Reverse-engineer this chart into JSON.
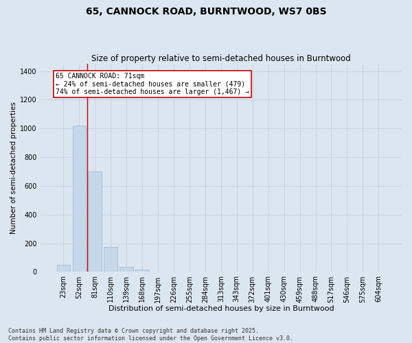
{
  "title": "65, CANNOCK ROAD, BURNTWOOD, WS7 0BS",
  "subtitle": "Size of property relative to semi-detached houses in Burntwood",
  "xlabel": "Distribution of semi-detached houses by size in Burntwood",
  "ylabel": "Number of semi-detached properties",
  "categories": [
    "23sqm",
    "52sqm",
    "81sqm",
    "110sqm",
    "139sqm",
    "168sqm",
    "197sqm",
    "226sqm",
    "255sqm",
    "284sqm",
    "313sqm",
    "343sqm",
    "372sqm",
    "401sqm",
    "430sqm",
    "459sqm",
    "488sqm",
    "517sqm",
    "546sqm",
    "575sqm",
    "604sqm"
  ],
  "values": [
    48,
    1020,
    700,
    175,
    38,
    15,
    4,
    0,
    0,
    0,
    0,
    0,
    0,
    0,
    0,
    0,
    0,
    0,
    0,
    0,
    0
  ],
  "bar_color": "#c5d8ea",
  "bar_edge_color": "#9ab5ce",
  "grid_color": "#c8d5e3",
  "background_color": "#dce6f0",
  "vline_color": "#cc0000",
  "vline_x": 1.5,
  "annotation_text": "65 CANNOCK ROAD: 71sqm\n← 24% of semi-detached houses are smaller (479)\n74% of semi-detached houses are larger (1,467) →",
  "annotation_box_facecolor": "#ffffff",
  "annotation_box_edgecolor": "#cc0000",
  "ylim": [
    0,
    1450
  ],
  "yticks": [
    0,
    200,
    400,
    600,
    800,
    1000,
    1200,
    1400
  ],
  "footer_line1": "Contains HM Land Registry data © Crown copyright and database right 2025.",
  "footer_line2": "Contains public sector information licensed under the Open Government Licence v3.0.",
  "title_fontsize": 10,
  "subtitle_fontsize": 8.5,
  "xlabel_fontsize": 8,
  "ylabel_fontsize": 7.5,
  "tick_fontsize": 7,
  "annotation_fontsize": 7,
  "footer_fontsize": 6
}
